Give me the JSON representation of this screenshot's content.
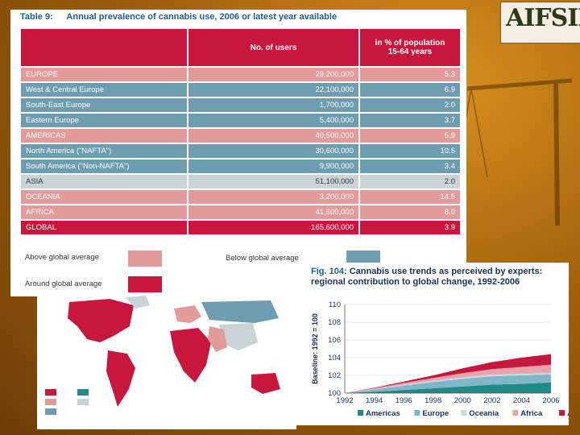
{
  "table": {
    "number": "Table 9:",
    "title": "Annual prevalence of cannabis use, 2006 or latest year available",
    "header": {
      "users": "No. of users",
      "percent_line1": "in % of population",
      "percent_line2": "15-64 years"
    },
    "rows": [
      {
        "region": "EUROPE",
        "users": "29,200,000",
        "pct": "5.3",
        "style": "pink"
      },
      {
        "region": "West & Central Europe",
        "users": "22,100,000",
        "pct": "6.9",
        "style": "blue"
      },
      {
        "region": "South-East Europe",
        "users": "1,700,000",
        "pct": "2.0",
        "style": "blue"
      },
      {
        "region": "Eastern Europe",
        "users": "5,400,000",
        "pct": "3.7",
        "style": "blue"
      },
      {
        "region": "AMERICAS",
        "users": "40,500,000",
        "pct": "5.9",
        "style": "pink"
      },
      {
        "region": "North America (\"NAFTA\")",
        "users": "30,600,000",
        "pct": "10.5",
        "style": "blue"
      },
      {
        "region": "South America (\"Non-NAFTA\")",
        "users": "9,900,000",
        "pct": "3.4",
        "style": "blue"
      },
      {
        "region": "ASIA",
        "users": "51,100,000",
        "pct": "2.0",
        "style": "grey"
      },
      {
        "region": "OCEANIA",
        "users": "3,200,000",
        "pct": "14.5",
        "style": "pink"
      },
      {
        "region": "AFRICA",
        "users": "41,600,000",
        "pct": "8.0",
        "style": "pink"
      },
      {
        "region": "GLOBAL",
        "users": "165,600,000",
        "pct": "3.9",
        "style": "red"
      }
    ],
    "legend": {
      "above": "Above global average",
      "below": "Below global average",
      "around": "Around global average"
    },
    "colors": {
      "red": "#c8173e",
      "pink": "#e29a9a",
      "blue": "#6e9cb0",
      "grey": "#c9d3d8"
    }
  },
  "logo": {
    "text": "AIFSIN"
  },
  "figure": {
    "number": "Fig. 104:",
    "title": "Cannabis use trends as perceived by experts: regional contribution to global change, 1992-2006"
  },
  "chart_data": {
    "type": "area",
    "title": "Cannabis use trends as perceived by experts: regional contribution to global change, 1992-2006",
    "ylabel": "Baseline: 1992 = 100",
    "xlabel": "",
    "ylim": [
      100,
      110
    ],
    "yticks": [
      100,
      102,
      104,
      106,
      108,
      110
    ],
    "x": [
      1992,
      1994,
      1996,
      1998,
      2000,
      2002,
      2004,
      2006
    ],
    "series": [
      {
        "name": "Americas",
        "color": "#1f8a86",
        "values": [
          0,
          0.15,
          0.35,
          0.55,
          0.75,
          0.95,
          1.05,
          1.2
        ]
      },
      {
        "name": "Europe",
        "color": "#7fb6c8",
        "values": [
          0,
          0.25,
          0.5,
          0.7,
          0.85,
          0.95,
          0.95,
          0.9
        ]
      },
      {
        "name": "Oceania",
        "color": "#c9d8de",
        "values": [
          0,
          0.05,
          0.1,
          0.15,
          0.2,
          0.2,
          0.2,
          0.2
        ]
      },
      {
        "name": "Africa",
        "color": "#e8a4a8",
        "values": [
          0,
          0.1,
          0.2,
          0.3,
          0.45,
          0.6,
          0.75,
          0.9
        ]
      },
      {
        "name": "Asia",
        "color": "#c8173e",
        "values": [
          0,
          0.05,
          0.15,
          0.3,
          0.55,
          0.8,
          1.05,
          1.2
        ]
      }
    ],
    "legend_labels": [
      "Americas",
      "Europe",
      "Oceania",
      "Africa",
      "Asia"
    ],
    "legend_position": "bottom"
  }
}
